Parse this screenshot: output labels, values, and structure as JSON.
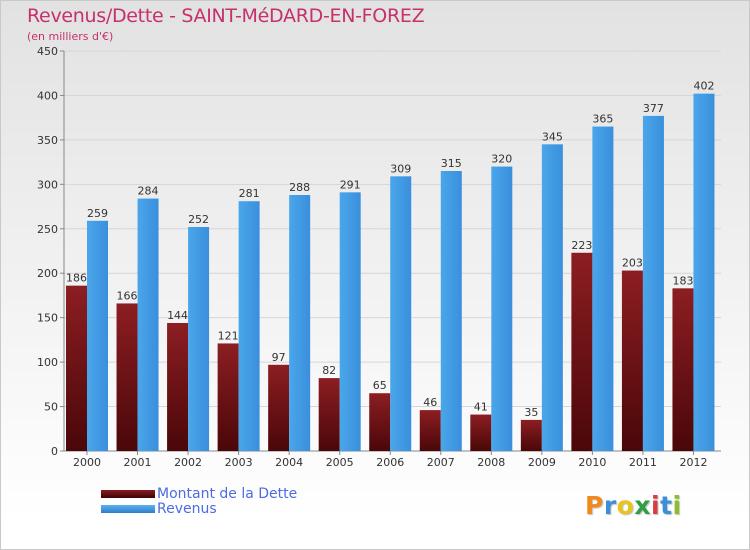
{
  "chart_data": {
    "type": "bar",
    "title": "Revenus/Dette - SAINT-MéDARD-EN-FOREZ",
    "subtitle": "(en milliers d'€)",
    "categories": [
      "2000",
      "2001",
      "2002",
      "2003",
      "2004",
      "2005",
      "2006",
      "2007",
      "2008",
      "2009",
      "2010",
      "2011",
      "2012"
    ],
    "series": [
      {
        "name": "Montant de la Dette",
        "color": "#6e0f12",
        "values": [
          186,
          166,
          144,
          121,
          97,
          82,
          65,
          46,
          41,
          35,
          223,
          203,
          183
        ]
      },
      {
        "name": "Revenus",
        "color": "#3f97e0",
        "values": [
          259,
          284,
          252,
          281,
          288,
          291,
          309,
          315,
          320,
          345,
          365,
          377,
          402
        ]
      }
    ],
    "ylim": [
      0,
      450
    ],
    "yticks": [
      0,
      50,
      100,
      150,
      200,
      250,
      300,
      350,
      400,
      450
    ],
    "grid": "horizontal",
    "legend": "bottom-left"
  },
  "logo": {
    "letters": [
      "P",
      "r",
      "o",
      "x",
      "i",
      "t",
      "i"
    ],
    "colors": [
      "#f08a1c",
      "#3b8fd8",
      "#e8c51c",
      "#2f9e44",
      "#d93c3c",
      "#3b8fd8",
      "#8bbf2a"
    ]
  }
}
